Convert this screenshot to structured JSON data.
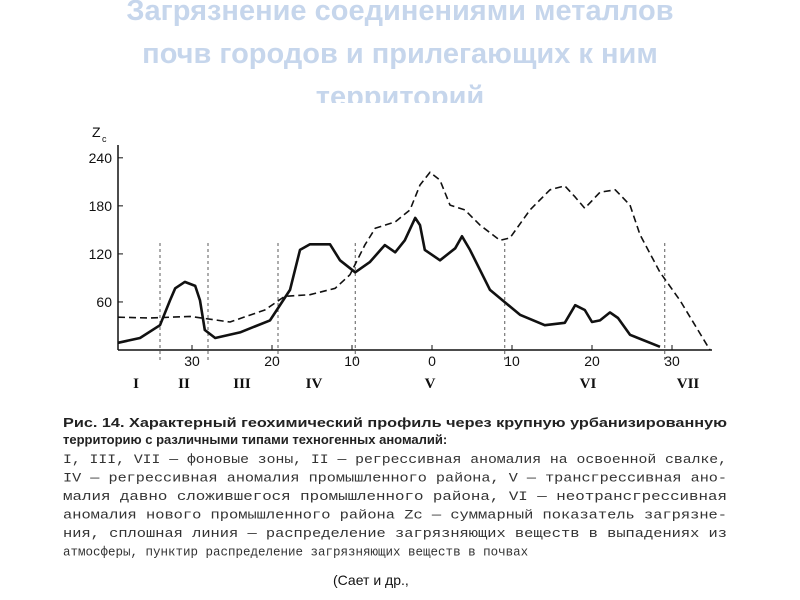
{
  "slide_title": [
    "Загрязнение соединениями металлов",
    "почв городов и прилегающих к ним",
    "территорий"
  ],
  "chart_data": {
    "type": "line",
    "ylabel": {
      "main": "Z",
      "sub": "c"
    },
    "xlim": [
      -39.25,
      35
    ],
    "ylim": [
      0,
      256
    ],
    "xticks": [
      {
        "value": -30,
        "label": "30"
      },
      {
        "value": -20,
        "label": "20"
      },
      {
        "value": -10,
        "label": "10"
      },
      0,
      10,
      20,
      30
    ],
    "yticks": [
      60,
      120,
      180,
      240
    ],
    "zones": [
      {
        "label": "I",
        "x": -37
      },
      {
        "label": "II",
        "x": -31
      },
      {
        "label": "III",
        "x": -23.75
      },
      {
        "label": "IV",
        "x": -14.75
      },
      {
        "label": "V",
        "x": -0.25
      },
      {
        "label": "VI",
        "x": 19.5
      },
      {
        "label": "VII",
        "x": 32
      }
    ],
    "zone_bounds": [
      -34,
      -28,
      -19.25,
      -9.6,
      9.1,
      29.1
    ],
    "series": [
      {
        "color": "#111111",
        "dashed": false,
        "x": [
          -39.25,
          -36.5,
          -34,
          -32.75,
          -32.1,
          -30.9,
          -29.6,
          -29,
          -28.4,
          -27.1,
          -24,
          -20.25,
          -17.75,
          -16.5,
          -15.25,
          -12.75,
          -11.5,
          -9.6,
          -7.75,
          -5.9,
          -4.6,
          -3.4,
          -2.1,
          -1.5,
          -0.9,
          1,
          2.9,
          3.75,
          4.75,
          7.25,
          11,
          14.1,
          16.6,
          17.9,
          19.1,
          20,
          21,
          22.25,
          23.25,
          24.75,
          28.5
        ],
        "values": [
          9,
          15,
          31,
          62,
          77,
          85,
          80,
          62,
          25,
          15,
          22,
          37,
          75,
          125,
          132,
          132,
          112,
          97,
          110,
          131,
          122,
          137,
          165,
          156,
          125,
          112,
          127,
          142,
          125,
          75,
          44,
          31,
          34,
          56,
          50,
          35,
          37,
          47,
          40,
          19,
          4
        ]
      },
      {
        "color": "#111111",
        "dashed": true,
        "x": [
          -39.25,
          -35.25,
          -30.25,
          -25.25,
          -20.9,
          -18.4,
          -15.25,
          -12.1,
          -10.25,
          -8.4,
          -7.1,
          -4.6,
          -2.75,
          -1.5,
          -0.25,
          1,
          2.25,
          4.1,
          6,
          8.5,
          9.75,
          12.25,
          14.75,
          16.6,
          17.9,
          19.1,
          21,
          22.9,
          24.75,
          26,
          28.5,
          31,
          34.75
        ],
        "values": [
          41,
          40,
          42,
          35,
          50,
          67,
          69,
          77,
          94,
          131,
          152,
          160,
          175,
          206,
          222,
          212,
          181,
          175,
          156,
          137,
          140,
          175,
          200,
          205,
          191,
          177,
          197,
          200,
          181,
          144,
          97,
          62,
          0
        ]
      }
    ]
  },
  "caption": {
    "heading": [
      "Рис. 14. Характерный геохимический профиль через крупную урбанизированную",
      "территорию с различными типами техногенных аномалий:"
    ],
    "body": [
      "I, III, VII — фоновые зоны, II — регрессивная аномалия на освоенной свалке,",
      "IV — регрессивная аномалия промышленного района, V — трансгрессивная ано-",
      "малия давно сложившегося промышленного района, VI — неотрансгрессивная",
      "аномалия нового промышленного района Zс — суммарный показатель загрязне-",
      "ния, сплошная линия — распределение загрязняющих веществ в выпадениях из",
      "атмосферы, пунктир   распределение загрязняющих веществ в почвах"
    ]
  },
  "citation": "(Сает и др.,"
}
